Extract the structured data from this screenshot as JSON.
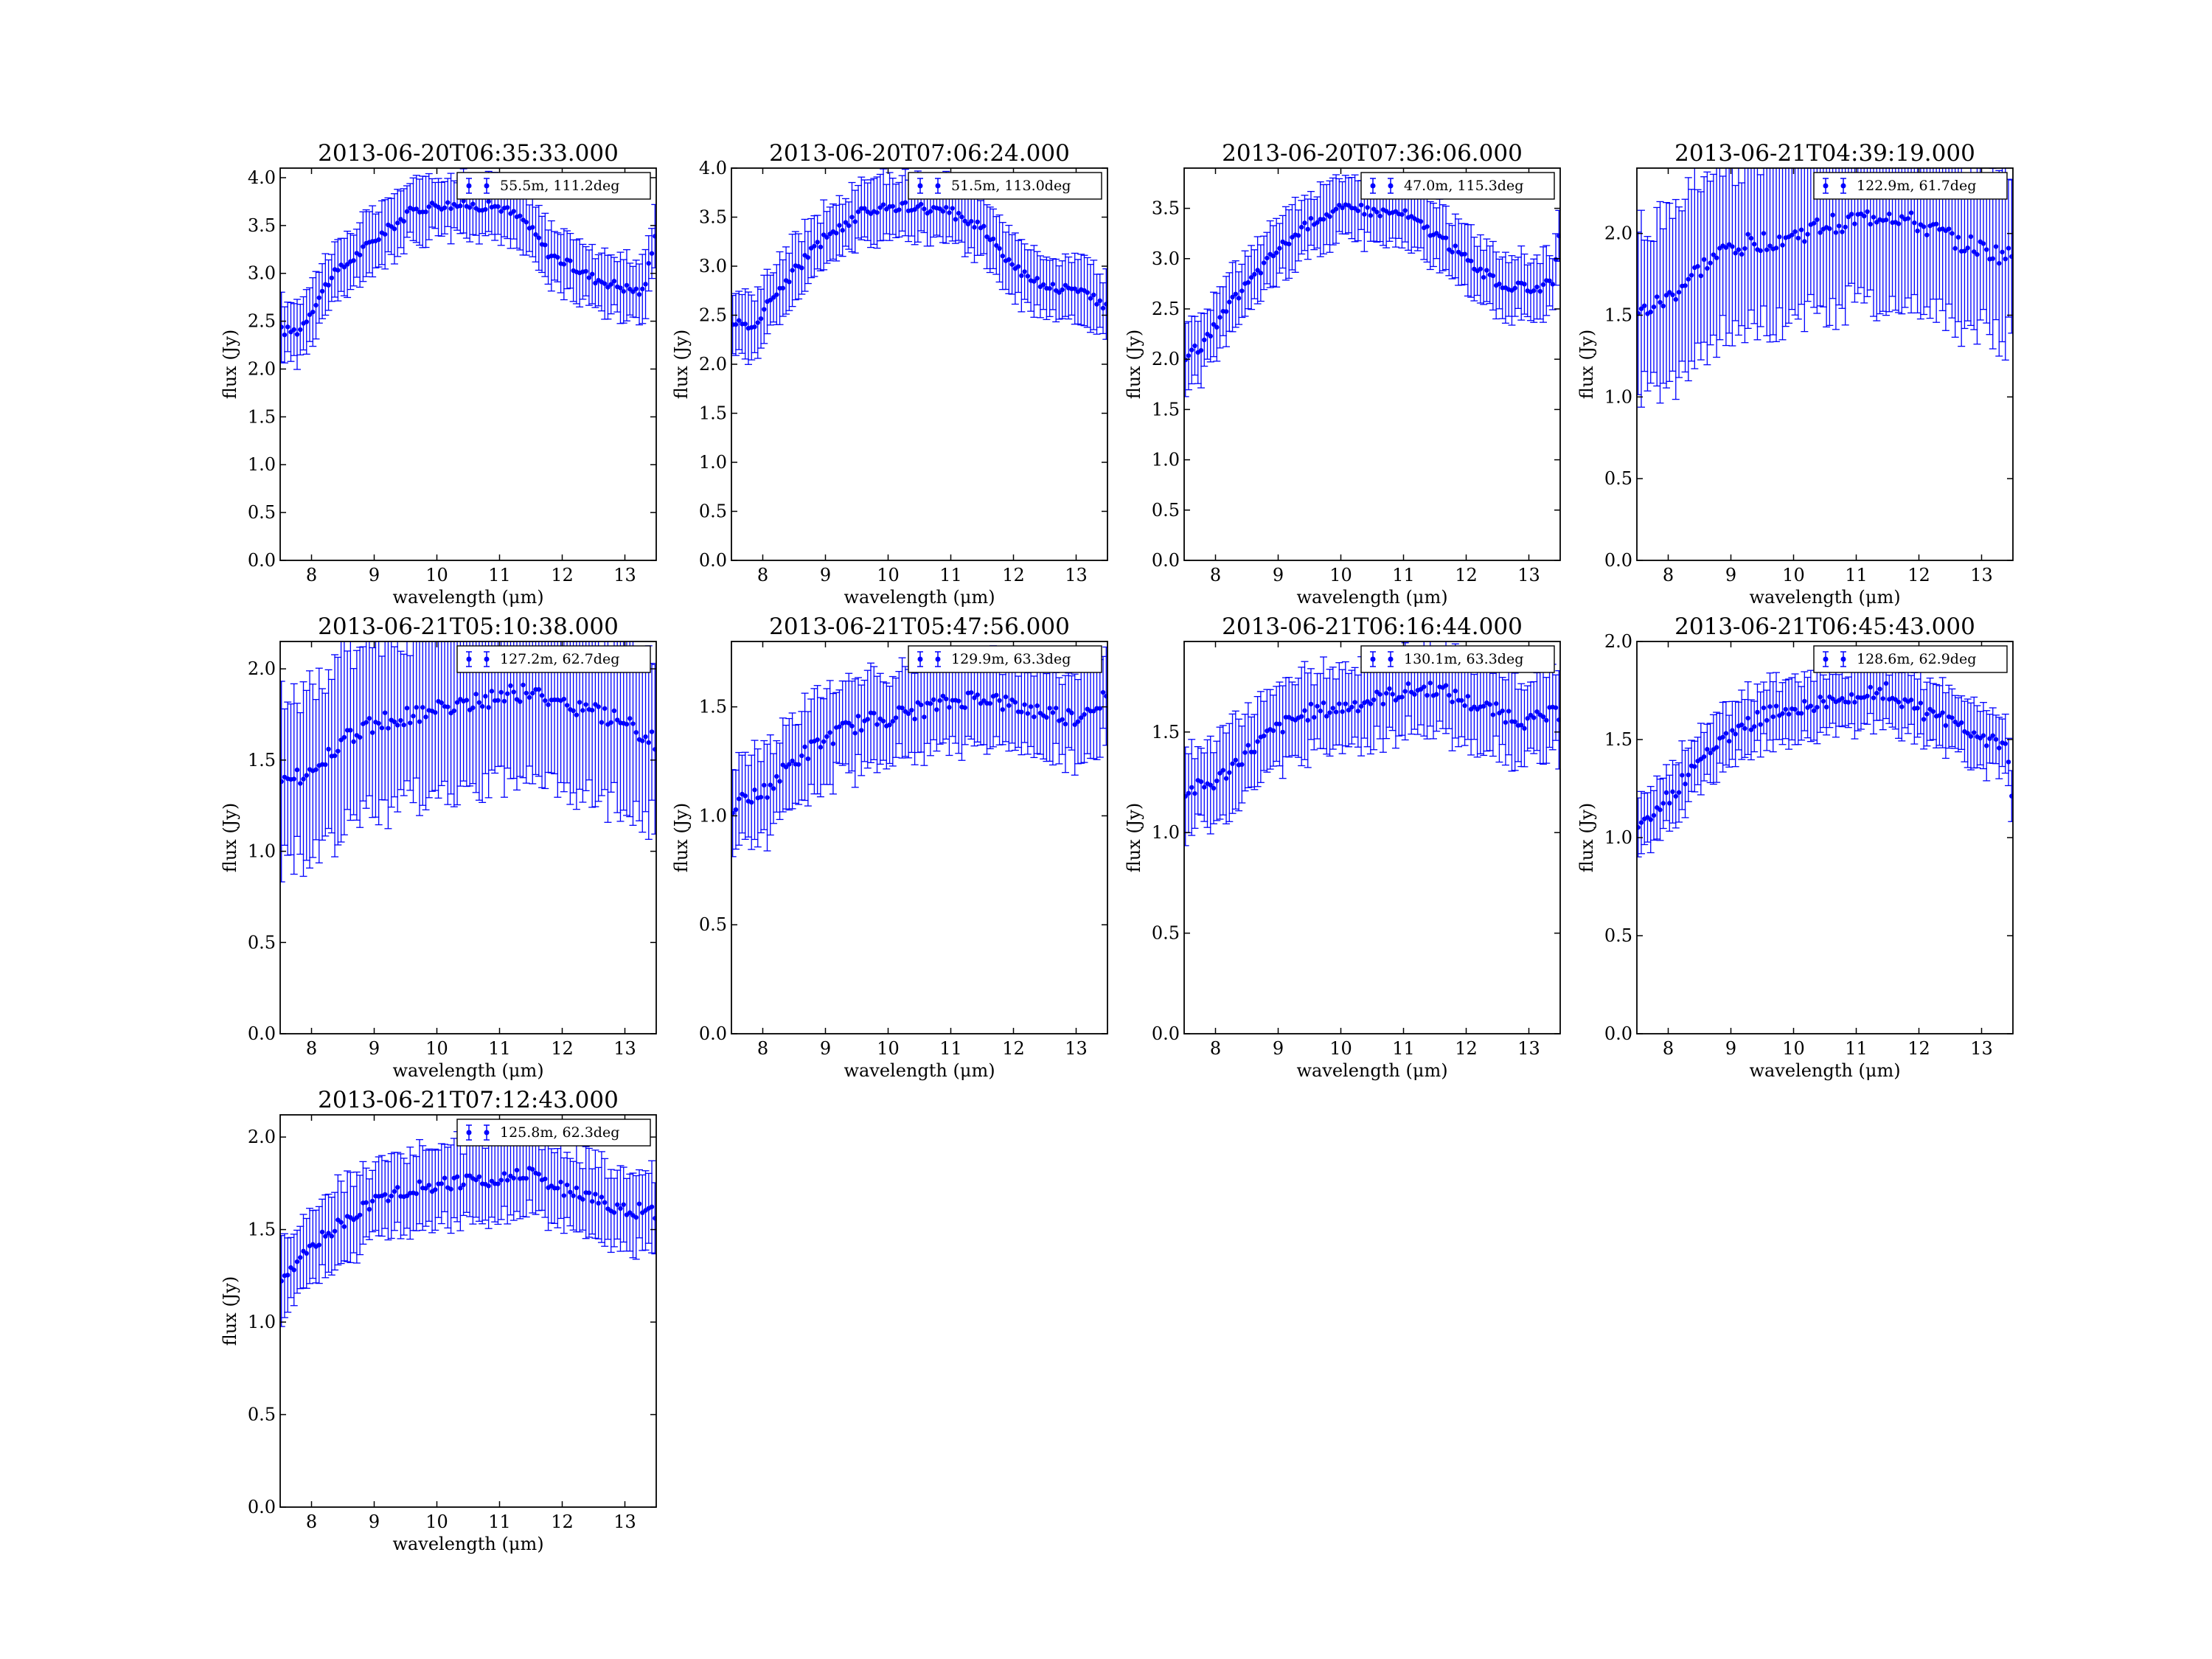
{
  "figure": {
    "background": "#ffffff"
  },
  "style": {
    "series_color": "#0000ff",
    "axis_color": "#000000"
  },
  "chart_data": [
    {
      "type": "scatter",
      "title": "2013-06-20T06:35:33.000",
      "xlabel": "wavelength (μm)",
      "ylabel": "flux (Jy)",
      "xlim": [
        7.5,
        13.5
      ],
      "ylim": [
        0.0,
        4.1
      ],
      "xticks": [
        "8",
        "9",
        "10",
        "11",
        "12",
        "13"
      ],
      "yticks": [
        "0.0",
        "0.5",
        "1.0",
        "1.5",
        "2.0",
        "2.5",
        "3.0",
        "3.5",
        "4.0"
      ],
      "legend_position": "top-right",
      "series": [
        {
          "name": "55.5m, 111.2deg",
          "profile": [
            [
              7.5,
              2.4
            ],
            [
              7.8,
              2.4
            ],
            [
              8.3,
              2.95
            ],
            [
              9.0,
              3.35
            ],
            [
              9.6,
              3.65
            ],
            [
              10.0,
              3.72
            ],
            [
              11.0,
              3.7
            ],
            [
              11.4,
              3.55
            ],
            [
              11.8,
              3.2
            ],
            [
              12.5,
              2.95
            ],
            [
              13.0,
              2.85
            ],
            [
              13.3,
              2.8
            ],
            [
              13.5,
              3.5
            ]
          ],
          "error": 0.3,
          "noise": 0.05
        }
      ]
    },
    {
      "type": "scatter",
      "title": "2013-06-20T07:06:24.000",
      "xlabel": "wavelength (μm)",
      "ylabel": "flux (Jy)",
      "xlim": [
        7.5,
        13.5
      ],
      "ylim": [
        0.0,
        4.0
      ],
      "xticks": [
        "8",
        "9",
        "10",
        "11",
        "12",
        "13"
      ],
      "yticks": [
        "0.0",
        "0.5",
        "1.0",
        "1.5",
        "2.0",
        "2.5",
        "3.0",
        "3.5",
        "4.0"
      ],
      "legend_position": "top-right",
      "series": [
        {
          "name": "51.5m, 113.0deg",
          "profile": [
            [
              7.5,
              2.45
            ],
            [
              7.8,
              2.35
            ],
            [
              8.3,
              2.8
            ],
            [
              9.0,
              3.3
            ],
            [
              9.6,
              3.55
            ],
            [
              10.0,
              3.62
            ],
            [
              11.0,
              3.55
            ],
            [
              11.5,
              3.4
            ],
            [
              12.0,
              3.0
            ],
            [
              12.5,
              2.8
            ],
            [
              13.0,
              2.75
            ],
            [
              13.5,
              2.6
            ]
          ],
          "error": 0.3,
          "noise": 0.05
        }
      ]
    },
    {
      "type": "scatter",
      "title": "2013-06-20T07:36:06.000",
      "xlabel": "wavelength (μm)",
      "ylabel": "flux (Jy)",
      "xlim": [
        7.5,
        13.5
      ],
      "ylim": [
        0.0,
        3.9
      ],
      "xticks": [
        "8",
        "9",
        "10",
        "11",
        "12",
        "13"
      ],
      "yticks": [
        "0.0",
        "0.5",
        "1.0",
        "1.5",
        "2.0",
        "2.5",
        "3.0",
        "3.5"
      ],
      "legend_position": "top-right",
      "series": [
        {
          "name": "47.0m, 115.3deg",
          "profile": [
            [
              7.5,
              2.0
            ],
            [
              7.8,
              2.15
            ],
            [
              8.3,
              2.6
            ],
            [
              9.0,
              3.1
            ],
            [
              9.6,
              3.4
            ],
            [
              10.0,
              3.5
            ],
            [
              11.0,
              3.45
            ],
            [
              11.5,
              3.25
            ],
            [
              12.0,
              3.0
            ],
            [
              12.5,
              2.75
            ],
            [
              13.0,
              2.7
            ],
            [
              13.4,
              2.75
            ],
            [
              13.5,
              3.4
            ]
          ],
          "error": 0.3,
          "noise": 0.05
        }
      ]
    },
    {
      "type": "scatter",
      "title": "2013-06-21T04:39:19.000",
      "xlabel": "wavelength (μm)",
      "ylabel": "flux (Jy)",
      "xlim": [
        7.5,
        13.5
      ],
      "ylim": [
        0.0,
        2.4
      ],
      "xticks": [
        "8",
        "9",
        "10",
        "11",
        "12",
        "13"
      ],
      "yticks": [
        "0.0",
        "0.5",
        "1.0",
        "1.5",
        "2.0"
      ],
      "legend_position": "top-right",
      "series": [
        {
          "name": "122.9m, 61.7deg",
          "profile": [
            [
              7.5,
              1.5
            ],
            [
              8.0,
              1.6
            ],
            [
              8.5,
              1.78
            ],
            [
              9.0,
              1.92
            ],
            [
              10.0,
              1.98
            ],
            [
              10.5,
              2.05
            ],
            [
              11.0,
              2.08
            ],
            [
              11.5,
              2.12
            ],
            [
              12.0,
              2.05
            ],
            [
              13.0,
              1.9
            ],
            [
              13.5,
              1.85
            ]
          ],
          "error": 0.5,
          "noise": 0.06
        }
      ]
    },
    {
      "type": "scatter",
      "title": "2013-06-21T05:10:38.000",
      "xlabel": "wavelength (μm)",
      "ylabel": "flux (Jy)",
      "xlim": [
        7.5,
        13.5
      ],
      "ylim": [
        0.0,
        2.15
      ],
      "xticks": [
        "8",
        "9",
        "10",
        "11",
        "12",
        "13"
      ],
      "yticks": [
        "0.0",
        "0.5",
        "1.0",
        "1.5",
        "2.0"
      ],
      "legend_position": "top-right",
      "series": [
        {
          "name": "127.2m, 62.7deg",
          "profile": [
            [
              7.5,
              1.35
            ],
            [
              8.0,
              1.45
            ],
            [
              8.5,
              1.6
            ],
            [
              9.0,
              1.7
            ],
            [
              10.0,
              1.78
            ],
            [
              11.0,
              1.85
            ],
            [
              11.5,
              1.88
            ],
            [
              12.0,
              1.82
            ],
            [
              13.0,
              1.7
            ],
            [
              13.5,
              1.6
            ]
          ],
          "error": 0.45,
          "noise": 0.05
        }
      ]
    },
    {
      "type": "scatter",
      "title": "2013-06-21T05:47:56.000",
      "xlabel": "wavelength (μm)",
      "ylabel": "flux (Jy)",
      "xlim": [
        7.5,
        13.5
      ],
      "ylim": [
        0.0,
        1.8
      ],
      "xticks": [
        "8",
        "9",
        "10",
        "11",
        "12",
        "13"
      ],
      "yticks": [
        "0.0",
        "0.5",
        "1.0",
        "1.5"
      ],
      "legend_position": "top-right",
      "series": [
        {
          "name": "129.9m, 63.3deg",
          "profile": [
            [
              7.5,
              1.05
            ],
            [
              8.0,
              1.1
            ],
            [
              8.5,
              1.25
            ],
            [
              9.0,
              1.35
            ],
            [
              9.5,
              1.42
            ],
            [
              10.0,
              1.45
            ],
            [
              11.0,
              1.52
            ],
            [
              11.5,
              1.55
            ],
            [
              12.0,
              1.5
            ],
            [
              13.0,
              1.45
            ],
            [
              13.5,
              1.55
            ]
          ],
          "error": 0.2,
          "noise": 0.04
        }
      ]
    },
    {
      "type": "scatter",
      "title": "2013-06-21T06:16:44.000",
      "xlabel": "wavelength (μm)",
      "ylabel": "flux (Jy)",
      "xlim": [
        7.5,
        13.5
      ],
      "ylim": [
        0.0,
        1.95
      ],
      "xticks": [
        "8",
        "9",
        "10",
        "11",
        "12",
        "13"
      ],
      "yticks": [
        "0.0",
        "0.5",
        "1.0",
        "1.5"
      ],
      "legend_position": "top-right",
      "series": [
        {
          "name": "130.1m, 63.3deg",
          "profile": [
            [
              7.5,
              1.2
            ],
            [
              8.0,
              1.25
            ],
            [
              8.5,
              1.4
            ],
            [
              9.0,
              1.52
            ],
            [
              9.5,
              1.6
            ],
            [
              10.0,
              1.62
            ],
            [
              11.0,
              1.7
            ],
            [
              11.5,
              1.72
            ],
            [
              12.0,
              1.65
            ],
            [
              13.0,
              1.55
            ],
            [
              13.5,
              1.6
            ]
          ],
          "error": 0.2,
          "noise": 0.04
        }
      ]
    },
    {
      "type": "scatter",
      "title": "2013-06-21T06:45:43.000",
      "xlabel": "wavelength (μm)",
      "ylabel": "flux (Jy)",
      "xlim": [
        7.5,
        13.5
      ],
      "ylim": [
        0.0,
        2.0
      ],
      "xticks": [
        "8",
        "9",
        "10",
        "11",
        "12",
        "13"
      ],
      "yticks": [
        "0.0",
        "0.5",
        "1.0",
        "1.5",
        "2.0"
      ],
      "legend_position": "top-right",
      "series": [
        {
          "name": "128.6m, 62.9deg",
          "profile": [
            [
              7.5,
              1.05
            ],
            [
              8.0,
              1.2
            ],
            [
              8.5,
              1.4
            ],
            [
              9.0,
              1.52
            ],
            [
              9.5,
              1.62
            ],
            [
              10.0,
              1.66
            ],
            [
              11.0,
              1.72
            ],
            [
              11.5,
              1.75
            ],
            [
              12.0,
              1.65
            ],
            [
              12.5,
              1.6
            ],
            [
              13.0,
              1.52
            ],
            [
              13.4,
              1.45
            ],
            [
              13.5,
              1.15
            ]
          ],
          "error": 0.15,
          "noise": 0.04
        }
      ]
    },
    {
      "type": "scatter",
      "title": "2013-06-21T07:12:43.000",
      "xlabel": "wavelength (μm)",
      "ylabel": "flux (Jy)",
      "xlim": [
        7.5,
        13.5
      ],
      "ylim": [
        0.0,
        2.12
      ],
      "xticks": [
        "8",
        "9",
        "10",
        "11",
        "12",
        "13"
      ],
      "yticks": [
        "0.0",
        "0.5",
        "1.0",
        "1.5",
        "2.0"
      ],
      "legend_position": "top-right",
      "series": [
        {
          "name": "125.8m, 62.3deg",
          "profile": [
            [
              7.5,
              1.2
            ],
            [
              8.0,
              1.4
            ],
            [
              8.5,
              1.55
            ],
            [
              9.0,
              1.65
            ],
            [
              9.5,
              1.72
            ],
            [
              10.0,
              1.74
            ],
            [
              11.0,
              1.78
            ],
            [
              11.5,
              1.8
            ],
            [
              12.0,
              1.72
            ],
            [
              13.0,
              1.6
            ],
            [
              13.5,
              1.6
            ]
          ],
          "error": 0.2,
          "noise": 0.04
        }
      ]
    }
  ]
}
